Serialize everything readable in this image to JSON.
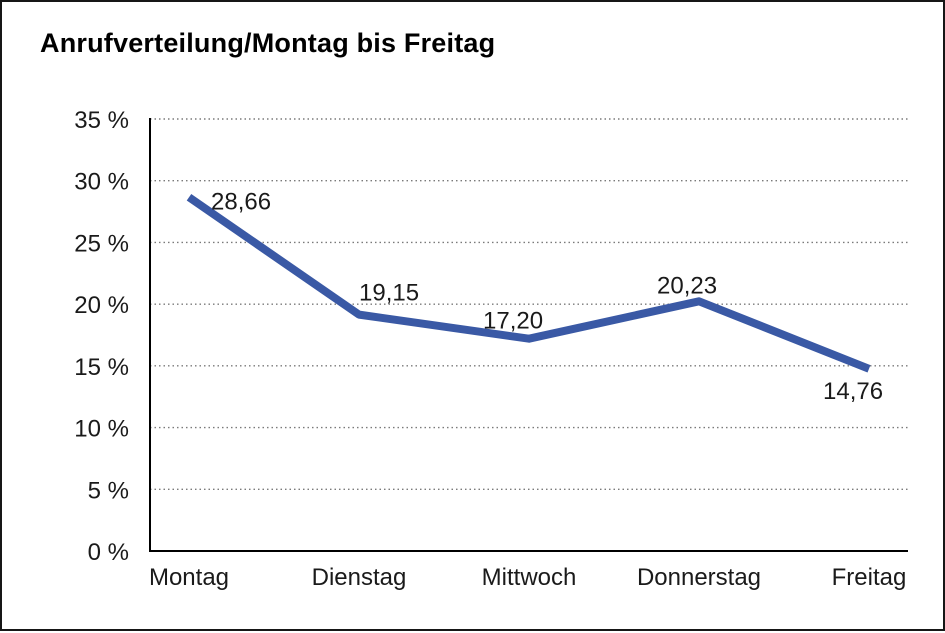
{
  "chart_data": {
    "type": "line",
    "title": "Anrufverteilung/Montag bis Freitag",
    "categories": [
      "Montag",
      "Dienstag",
      "Mittwoch",
      "Donnerstag",
      "Freitag"
    ],
    "series": [
      {
        "name": "Anrufverteilung",
        "values": [
          28.66,
          19.15,
          17.2,
          20.23,
          14.76
        ]
      }
    ],
    "data_labels": [
      "28,66",
      "19,15",
      "17,20",
      "20,23",
      "14,76"
    ],
    "y_ticks": [
      "0 %",
      "5 %",
      "10 %",
      "15 %",
      "20 %",
      "25 %",
      "30 %",
      "35 %"
    ],
    "y_tick_values": [
      0,
      5,
      10,
      15,
      20,
      25,
      30,
      35
    ],
    "ylim": [
      0,
      35
    ],
    "xlabel": "",
    "ylabel": "",
    "legend": "none",
    "grid": "horizontal-dotted",
    "line_color": "#3A59A5",
    "axis_color": "#000000",
    "grid_color": "#7a7a7a",
    "text_color": "#1a1a1a"
  }
}
